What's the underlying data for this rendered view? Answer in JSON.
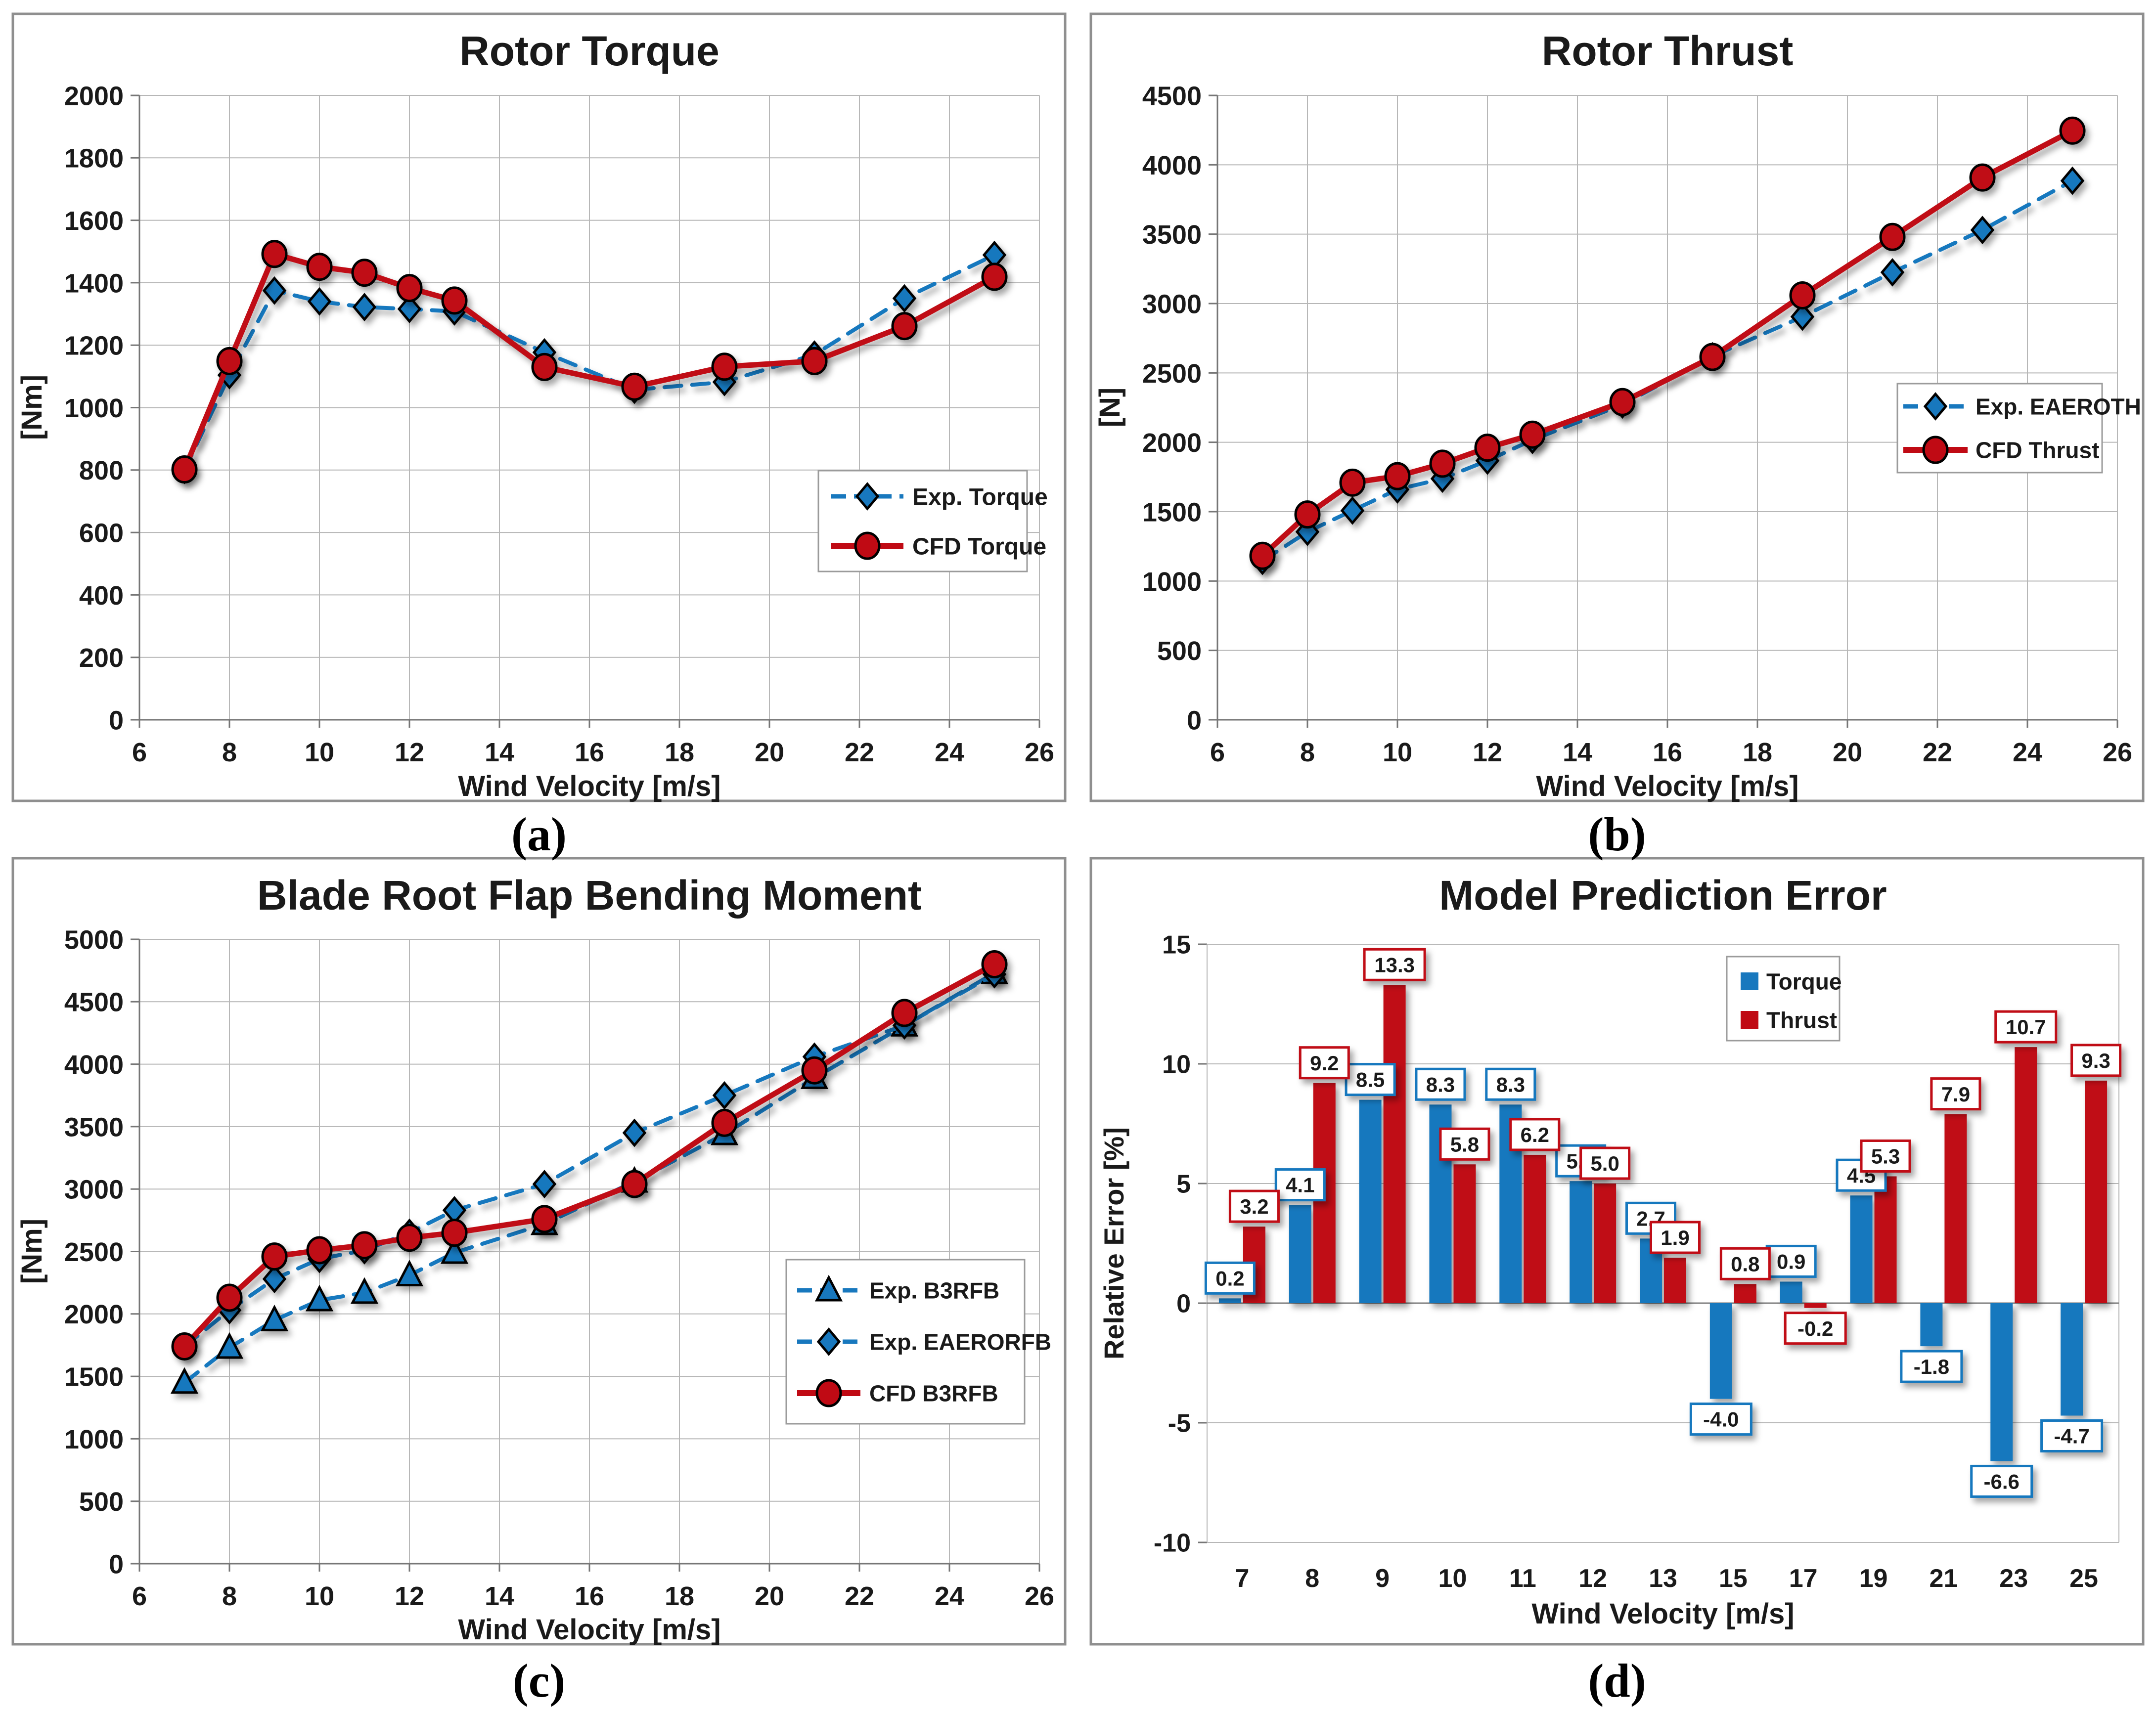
{
  "colors": {
    "blue": "#1878BE",
    "red": "#C00A14",
    "grid": "#B7B7B7",
    "axis": "#767676",
    "panel_border": "#8F8F8F",
    "text": "#1A1A1A",
    "label_text": "#000000",
    "box_fill": "#FFFFFF"
  },
  "chart_data": [
    {
      "id": "a",
      "type": "line",
      "title": "Rotor Torque",
      "ylabel": "[Nm]",
      "xlabel": "Wind Velocity [m/s]",
      "caption": "(a)",
      "ylim": [
        0,
        2000
      ],
      "ystep": 200,
      "xlim": [
        6,
        26
      ],
      "xstep": 2,
      "grid": "both",
      "legend_position": "right-middle",
      "x": [
        7,
        8,
        9,
        10,
        11,
        12,
        13,
        15,
        17,
        19,
        21,
        23,
        25
      ],
      "series": [
        {
          "name": "Exp. Torque",
          "color": "blue",
          "dashed": true,
          "marker": "diamond",
          "values": [
            800,
            1104,
            1375,
            1340,
            1322,
            1316,
            1308,
            1177,
            1057,
            1082,
            1170,
            1350,
            1489
          ]
        },
        {
          "name": "CFD Torque",
          "color": "red",
          "dashed": false,
          "marker": "circle",
          "values": [
            802,
            1149,
            1492,
            1451,
            1432,
            1383,
            1343,
            1130,
            1067,
            1131,
            1149,
            1261,
            1419
          ]
        }
      ]
    },
    {
      "id": "b",
      "type": "line",
      "title": "Rotor Thrust",
      "ylabel": "[N]",
      "xlabel": "Wind Velocity [m/s]",
      "caption": "(b)",
      "ylim": [
        0,
        4500
      ],
      "ystep": 500,
      "xlim": [
        6,
        26
      ],
      "xstep": 2,
      "grid": "both",
      "legend_position": "right-middle",
      "x": [
        7,
        8,
        9,
        10,
        11,
        12,
        13,
        15,
        17,
        19,
        21,
        23,
        25
      ],
      "series": [
        {
          "name": "Exp. EAEROTH",
          "color": "blue",
          "dashed": true,
          "marker": "diamond",
          "values": [
            1145,
            1355,
            1508,
            1660,
            1738,
            1868,
            2017,
            2272,
            2620,
            2905,
            3225,
            3530,
            3885
          ]
        },
        {
          "name": "CFD Thrust",
          "color": "red",
          "dashed": false,
          "marker": "circle",
          "values": [
            1182,
            1480,
            1709,
            1756,
            1846,
            1961,
            2055,
            2290,
            2615,
            3059,
            3480,
            3908,
            4246
          ]
        }
      ]
    },
    {
      "id": "c",
      "type": "line",
      "title": "Blade Root Flap Bending Moment",
      "ylabel": "[Nm]",
      "xlabel": "Wind Velocity [m/s]",
      "caption": "(c)",
      "ylim": [
        0,
        5000
      ],
      "ystep": 500,
      "xlim": [
        6,
        26
      ],
      "xstep": 2,
      "grid": "both",
      "legend_position": "right-lower",
      "x": [
        7,
        8,
        9,
        10,
        11,
        12,
        13,
        15,
        17,
        19,
        21,
        23,
        25
      ],
      "series": [
        {
          "name": "Exp. B3RFB",
          "color": "blue",
          "dashed": true,
          "marker": "triangle",
          "values": [
            1450,
            1730,
            1950,
            2110,
            2170,
            2310,
            2490,
            2720,
            3060,
            3440,
            3890,
            4310,
            4730
          ]
        },
        {
          "name": "Exp. EAERORFB",
          "color": "blue",
          "dashed": true,
          "marker": "diamond",
          "values": [
            1740,
            2030,
            2280,
            2440,
            2510,
            2650,
            2830,
            3040,
            3450,
            3750,
            4060,
            4310,
            4720
          ]
        },
        {
          "name": "CFD B3RFB",
          "color": "red",
          "dashed": false,
          "marker": "circle",
          "values": [
            1740,
            2130,
            2460,
            2510,
            2550,
            2610,
            2650,
            2760,
            3040,
            3530,
            3950,
            4410,
            4800
          ]
        }
      ]
    },
    {
      "id": "d",
      "type": "bar",
      "title": "Model Prediction Error",
      "ylabel": "Relative Error [%]",
      "xlabel": "Wind Velocity [m/s]",
      "caption": "(d)",
      "ylim": [
        -10,
        15
      ],
      "ystep": 5,
      "grid": "horizontal",
      "legend_position": "top-right",
      "categories": [
        "7",
        "8",
        "9",
        "10",
        "11",
        "12",
        "13",
        "15",
        "17",
        "19",
        "21",
        "23",
        "25"
      ],
      "series": [
        {
          "name": "Torque",
          "color": "blue",
          "values": [
            0.2,
            4.1,
            8.5,
            8.3,
            8.3,
            5.1,
            2.7,
            -4.0,
            0.9,
            4.5,
            -1.8,
            -6.6,
            -4.7
          ]
        },
        {
          "name": "Thrust",
          "color": "red",
          "values": [
            3.2,
            9.2,
            13.3,
            5.8,
            6.2,
            5.0,
            1.9,
            0.8,
            -0.2,
            5.3,
            7.9,
            10.7,
            9.3
          ]
        }
      ],
      "data_labels": true
    }
  ]
}
